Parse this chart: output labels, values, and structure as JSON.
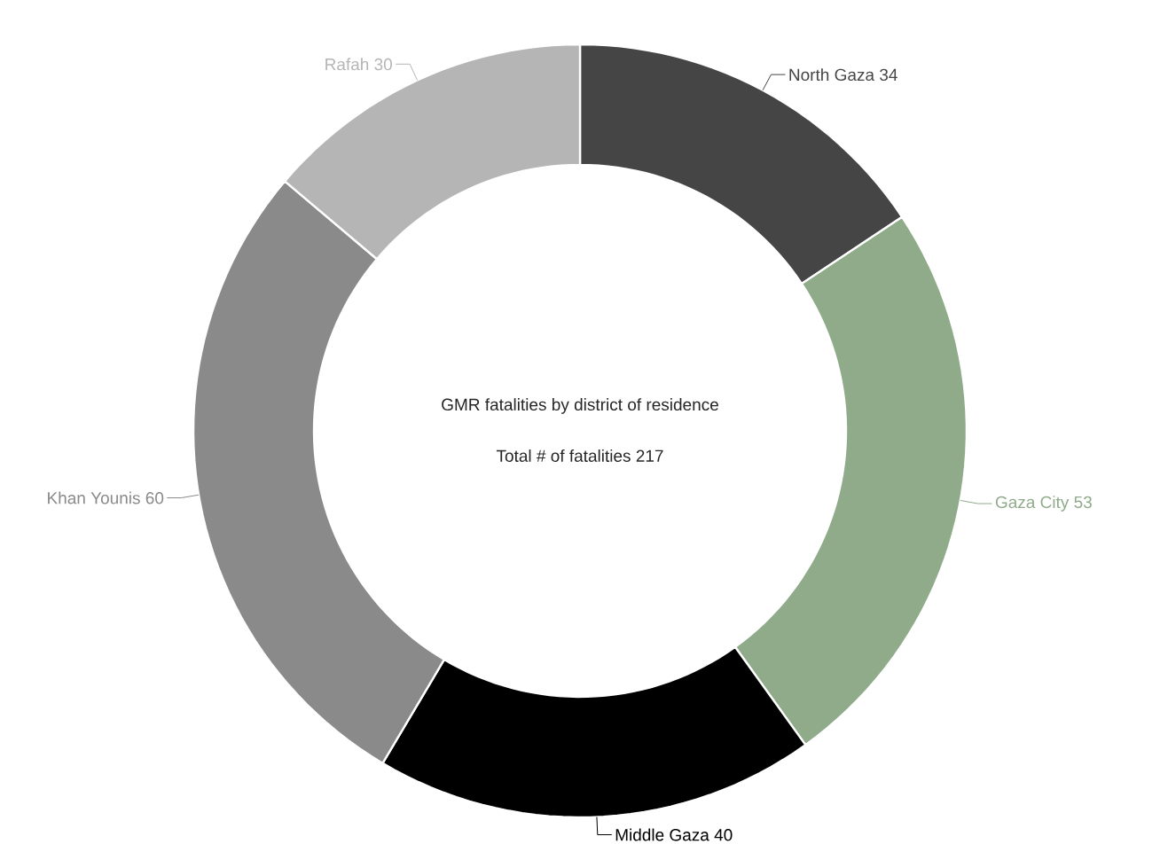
{
  "chart_data": {
    "type": "donut",
    "title": "GMR fatalities by district of residence",
    "subtitle": "Total # of fatalities 217",
    "categories": [
      "North Gaza",
      "Gaza City",
      "Middle Gaza",
      "Khan Younis",
      "Rafah"
    ],
    "values": [
      34,
      53,
      40,
      60,
      30
    ],
    "colors": [
      "#454545",
      "#8fab8a",
      "#000000",
      "#8a8a8a",
      "#b5b5b5"
    ],
    "data_labels": true
  }
}
